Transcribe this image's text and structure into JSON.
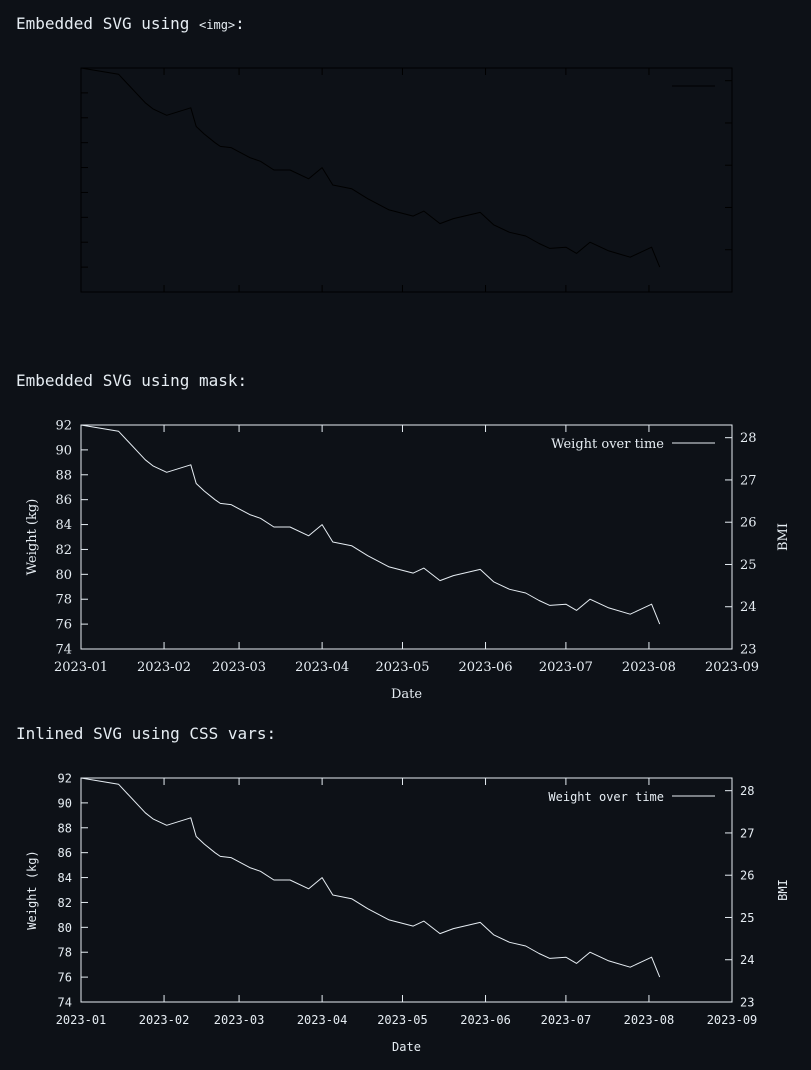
{
  "sections": [
    {
      "title_prefix": "Embedded SVG using ",
      "title_code": "<img>",
      "title_suffix": ":"
    },
    {
      "title": "Embedded SVG using mask:"
    },
    {
      "title": "Inlined SVG using CSS vars:"
    }
  ],
  "colors": {
    "background": "#0d1117",
    "foreground": "#e6edf3",
    "dim_plot": "#000000"
  },
  "chart_data": [
    {
      "type": "line",
      "title": "",
      "xlabel": "Date",
      "ylabel": "Weight (kg)",
      "y2label": "BMI",
      "ylim": [
        74,
        92
      ],
      "y2lim": [
        23,
        28.3
      ],
      "xlim": [
        "2023-01-01",
        "2023-09-01"
      ],
      "y_ticks": [
        74,
        76,
        78,
        80,
        82,
        84,
        86,
        88,
        90,
        92
      ],
      "y2_ticks": [
        23,
        24,
        25,
        26,
        27,
        28
      ],
      "x_ticks": [
        "2023-01",
        "2023-02",
        "2023-03",
        "2023-04",
        "2023-05",
        "2023-06",
        "2023-07",
        "2023-08",
        "2023-09"
      ],
      "legend_position": "top-right",
      "series": [
        {
          "name": "Weight over time",
          "x": [
            "2023-01-01",
            "2023-01-15",
            "2023-01-25",
            "2023-01-28",
            "2023-02-02",
            "2023-02-11",
            "2023-02-13",
            "2023-02-16",
            "2023-02-20",
            "2023-02-22",
            "2023-02-26",
            "2023-03-05",
            "2023-03-09",
            "2023-03-14",
            "2023-03-20",
            "2023-03-27",
            "2023-04-01",
            "2023-04-05",
            "2023-04-12",
            "2023-04-18",
            "2023-04-26",
            "2023-05-05",
            "2023-05-09",
            "2023-05-15",
            "2023-05-20",
            "2023-05-30",
            "2023-06-04",
            "2023-06-10",
            "2023-06-16",
            "2023-06-21",
            "2023-06-25",
            "2023-07-01",
            "2023-07-05",
            "2023-07-10",
            "2023-07-17",
            "2023-07-25",
            "2023-07-29",
            "2023-08-02",
            "2023-08-05"
          ],
          "values": [
            92.0,
            91.5,
            89.2,
            88.7,
            88.2,
            88.8,
            87.3,
            86.7,
            86.0,
            85.7,
            85.6,
            84.8,
            84.5,
            83.8,
            83.8,
            83.1,
            84.0,
            82.6,
            82.3,
            81.5,
            80.6,
            80.1,
            80.5,
            79.5,
            79.9,
            80.4,
            79.4,
            78.8,
            78.5,
            77.9,
            77.5,
            77.6,
            77.1,
            78.0,
            77.3,
            76.8,
            77.2,
            77.6,
            76.0
          ]
        }
      ]
    }
  ]
}
